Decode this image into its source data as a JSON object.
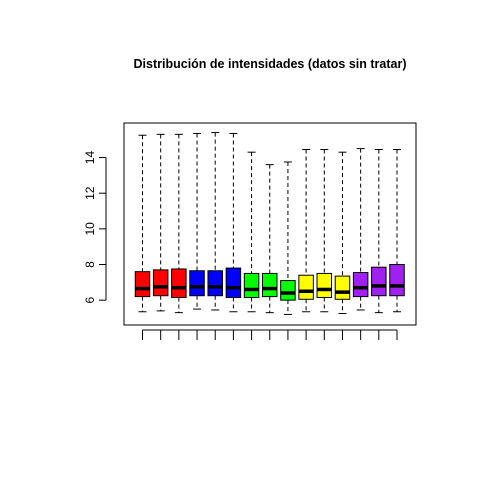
{
  "chart_data": {
    "type": "boxplot",
    "title": "Distribución de intensidades (datos sin tratar)",
    "xlabel": "",
    "ylabel": "",
    "ylim": [
      5.0,
      15.6
    ],
    "yticks": [
      "6",
      "8",
      "10",
      "12",
      "14"
    ],
    "grid": false,
    "boxes": [
      {
        "color": "#ff0000",
        "min": 5.35,
        "q1": 6.2,
        "median": 6.65,
        "q3": 7.6,
        "max": 15.25
      },
      {
        "color": "#ff0000",
        "min": 5.4,
        "q1": 6.25,
        "median": 6.75,
        "q3": 7.7,
        "max": 15.3
      },
      {
        "color": "#ff0000",
        "min": 5.3,
        "q1": 6.15,
        "median": 6.7,
        "q3": 7.75,
        "max": 15.3
      },
      {
        "color": "#0000ff",
        "min": 5.5,
        "q1": 6.25,
        "median": 6.75,
        "q3": 7.65,
        "max": 15.35
      },
      {
        "color": "#0000ff",
        "min": 5.45,
        "q1": 6.25,
        "median": 6.75,
        "q3": 7.65,
        "max": 15.4
      },
      {
        "color": "#0000ff",
        "min": 5.35,
        "q1": 6.15,
        "median": 6.7,
        "q3": 7.8,
        "max": 15.35
      },
      {
        "color": "#00ff00",
        "min": 5.35,
        "q1": 6.15,
        "median": 6.6,
        "q3": 7.5,
        "max": 14.3
      },
      {
        "color": "#00ff00",
        "min": 5.3,
        "q1": 6.2,
        "median": 6.65,
        "q3": 7.5,
        "max": 13.6
      },
      {
        "color": "#00ff00",
        "min": 5.2,
        "q1": 6.0,
        "median": 6.4,
        "q3": 7.1,
        "max": 13.75
      },
      {
        "color": "#ffff00",
        "min": 5.35,
        "q1": 6.05,
        "median": 6.5,
        "q3": 7.4,
        "max": 14.45
      },
      {
        "color": "#ffff00",
        "min": 5.35,
        "q1": 6.15,
        "median": 6.6,
        "q3": 7.5,
        "max": 14.45
      },
      {
        "color": "#ffff00",
        "min": 5.25,
        "q1": 6.05,
        "median": 6.45,
        "q3": 7.35,
        "max": 14.3
      },
      {
        "color": "#a020f0",
        "min": 5.45,
        "q1": 6.2,
        "median": 6.7,
        "q3": 7.55,
        "max": 14.5
      },
      {
        "color": "#a020f0",
        "min": 5.3,
        "q1": 6.25,
        "median": 6.8,
        "q3": 7.85,
        "max": 14.45
      },
      {
        "color": "#a020f0",
        "min": 5.35,
        "q1": 6.25,
        "median": 6.8,
        "q3": 8.0,
        "max": 14.45
      }
    ]
  }
}
